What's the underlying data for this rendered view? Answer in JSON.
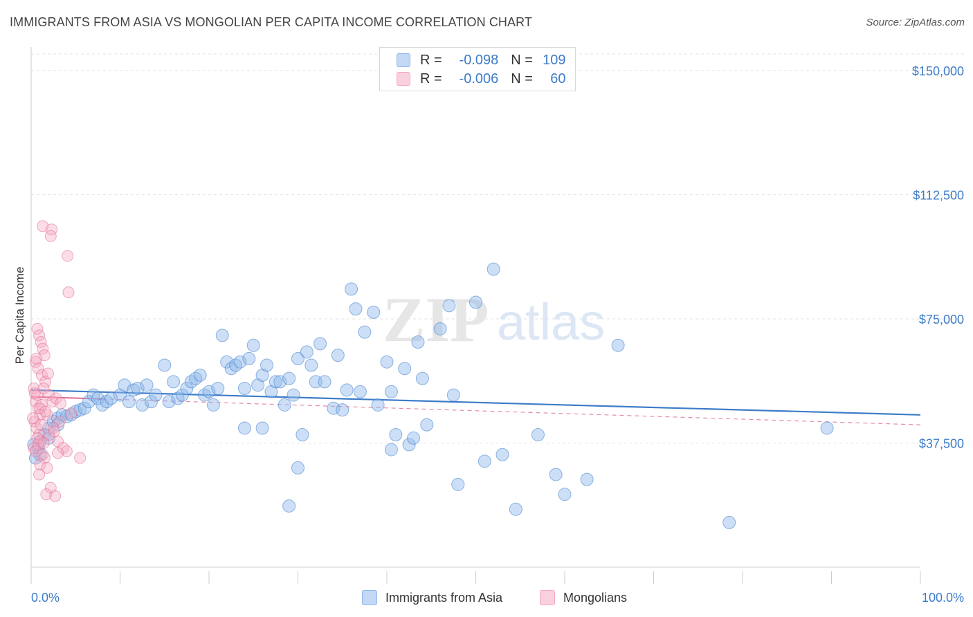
{
  "title": "IMMIGRANTS FROM ASIA VS MONGOLIAN PER CAPITA INCOME CORRELATION CHART",
  "source": "Source: ZipAtlas.com",
  "watermark": {
    "zip": "ZIP",
    "atlas": "atlas"
  },
  "legend": {
    "rows": [
      {
        "r_label": "R =",
        "r_value": "-0.098",
        "n_label": "N =",
        "n_value": "109",
        "color": "#8fb8ec"
      },
      {
        "r_label": "R =",
        "r_value": "-0.006",
        "n_label": "N =",
        "n_value": "60",
        "color": "#f4a9c2"
      }
    ]
  },
  "bottom_legend": [
    {
      "label": "Immigrants from Asia",
      "color": "#8fb8ec"
    },
    {
      "label": "Mongolians",
      "color": "#f4a9c2"
    }
  ],
  "chart_data": {
    "type": "scatter",
    "title": "IMMIGRANTS FROM ASIA VS MONGOLIAN PER CAPITA INCOME CORRELATION CHART",
    "xlabel": "",
    "ylabel": "Per Capita Income",
    "xlim": [
      0,
      100
    ],
    "ylim": [
      0,
      155000
    ],
    "x_tick_labels": [
      "0.0%",
      "100.0%"
    ],
    "y_ticks": [
      37500,
      75000,
      112500,
      150000
    ],
    "y_tick_labels": [
      "$37,500",
      "$75,000",
      "$112,500",
      "$150,000"
    ],
    "series": [
      {
        "name": "Immigrants from Asia",
        "color": "#3d7cc9",
        "fill": "rgba(143,184,236,0.45)",
        "trend": {
          "x": [
            0,
            100
          ],
          "y": [
            53500,
            46000
          ]
        },
        "points": [
          [
            0.5,
            33000
          ],
          [
            0.8,
            36000
          ],
          [
            1.0,
            38000
          ],
          [
            1.5,
            40000
          ],
          [
            2.0,
            42000
          ],
          [
            2.5,
            44000
          ],
          [
            3.0,
            45000
          ],
          [
            3.5,
            46000
          ],
          [
            4.0,
            45500
          ],
          [
            4.5,
            46000
          ],
          [
            5.0,
            47000
          ],
          [
            5.5,
            47500
          ],
          [
            6.0,
            48000
          ],
          [
            6.5,
            50000
          ],
          [
            7.0,
            52000
          ],
          [
            7.5,
            51000
          ],
          [
            8.0,
            49000
          ],
          [
            8.5,
            50000
          ],
          [
            9.0,
            51000
          ],
          [
            10.0,
            52000
          ],
          [
            10.5,
            55000
          ],
          [
            11.0,
            50000
          ],
          [
            11.5,
            53500
          ],
          [
            12.0,
            54000
          ],
          [
            12.5,
            49000
          ],
          [
            13.0,
            55000
          ],
          [
            13.5,
            50000
          ],
          [
            14.0,
            52000
          ],
          [
            15.0,
            61000
          ],
          [
            15.5,
            50000
          ],
          [
            16.0,
            56000
          ],
          [
            16.5,
            51000
          ],
          [
            17.0,
            52000
          ],
          [
            17.5,
            54000
          ],
          [
            18.0,
            56000
          ],
          [
            18.5,
            57000
          ],
          [
            19.0,
            58000
          ],
          [
            19.5,
            52000
          ],
          [
            20.0,
            53000
          ],
          [
            20.5,
            49000
          ],
          [
            21.0,
            54000
          ],
          [
            21.5,
            70000
          ],
          [
            22.0,
            62000
          ],
          [
            22.5,
            60000
          ],
          [
            23.0,
            61000
          ],
          [
            23.5,
            62000
          ],
          [
            24.0,
            54000
          ],
          [
            24.5,
            63000
          ],
          [
            25.0,
            67000
          ],
          [
            25.5,
            55000
          ],
          [
            26.0,
            58000
          ],
          [
            26.5,
            61000
          ],
          [
            27.0,
            53000
          ],
          [
            27.5,
            56000
          ],
          [
            28.0,
            56000
          ],
          [
            28.5,
            49000
          ],
          [
            29.0,
            57000
          ],
          [
            29.5,
            52000
          ],
          [
            30.0,
            63000
          ],
          [
            31.0,
            65000
          ],
          [
            31.5,
            61000
          ],
          [
            32.0,
            56000
          ],
          [
            32.5,
            67500
          ],
          [
            33.0,
            56000
          ],
          [
            34.0,
            48000
          ],
          [
            34.5,
            64000
          ],
          [
            35.0,
            47500
          ],
          [
            35.5,
            53500
          ],
          [
            36.0,
            84000
          ],
          [
            36.5,
            78000
          ],
          [
            37.0,
            53000
          ],
          [
            37.5,
            71000
          ],
          [
            38.5,
            77000
          ],
          [
            39.0,
            49000
          ],
          [
            40.0,
            62000
          ],
          [
            40.5,
            53000
          ],
          [
            41.0,
            40000
          ],
          [
            42.0,
            60000
          ],
          [
            42.5,
            37000
          ],
          [
            43.0,
            39000
          ],
          [
            43.5,
            68000
          ],
          [
            44.0,
            57000
          ],
          [
            44.5,
            43000
          ],
          [
            46.0,
            72000
          ],
          [
            47.0,
            79000
          ],
          [
            47.5,
            52000
          ],
          [
            48.0,
            25000
          ],
          [
            50.0,
            80000
          ],
          [
            51.0,
            32000
          ],
          [
            52.0,
            90000
          ],
          [
            53.0,
            34000
          ],
          [
            57.0,
            40000
          ],
          [
            59.0,
            28000
          ],
          [
            60.0,
            22000
          ],
          [
            62.5,
            26500
          ],
          [
            66.0,
            67000
          ],
          [
            78.5,
            13500
          ],
          [
            89.5,
            42000
          ],
          [
            30.0,
            30000
          ],
          [
            29.0,
            18500
          ],
          [
            30.5,
            40000
          ],
          [
            26.0,
            42000
          ],
          [
            24.0,
            42000
          ],
          [
            40.5,
            35500
          ],
          [
            54.5,
            17500
          ],
          [
            1.0,
            34000
          ],
          [
            3.0,
            43000
          ],
          [
            2.0,
            39000
          ],
          [
            0.3,
            37000
          ]
        ]
      },
      {
        "name": "Mongolians",
        "color": "#e06c92",
        "fill": "rgba(244,169,194,0.40)",
        "trend": {
          "x": [
            0,
            100
          ],
          "y": [
            51500,
            43000
          ]
        },
        "points": [
          [
            0.3,
            54000
          ],
          [
            0.5,
            50000
          ],
          [
            0.7,
            52000
          ],
          [
            0.8,
            48000
          ],
          [
            1.0,
            46000
          ],
          [
            1.2,
            49000
          ],
          [
            0.4,
            44000
          ],
          [
            0.6,
            42000
          ],
          [
            0.9,
            40000
          ],
          [
            1.1,
            38000
          ],
          [
            0.3,
            36000
          ],
          [
            0.5,
            35000
          ],
          [
            0.8,
            37000
          ],
          [
            1.3,
            34000
          ],
          [
            1.5,
            33000
          ],
          [
            1.0,
            31000
          ],
          [
            1.8,
            30000
          ],
          [
            0.9,
            28000
          ],
          [
            2.2,
            24000
          ],
          [
            1.7,
            22000
          ],
          [
            2.7,
            21500
          ],
          [
            0.7,
            72000
          ],
          [
            0.9,
            70000
          ],
          [
            1.1,
            68000
          ],
          [
            1.3,
            66000
          ],
          [
            1.5,
            64000
          ],
          [
            0.5,
            62000
          ],
          [
            0.8,
            60000
          ],
          [
            1.2,
            58000
          ],
          [
            1.6,
            56000
          ],
          [
            1.4,
            54000
          ],
          [
            2.0,
            52000
          ],
          [
            2.4,
            50000
          ],
          [
            1.0,
            48000
          ],
          [
            1.8,
            46000
          ],
          [
            3.2,
            44000
          ],
          [
            2.5,
            42000
          ],
          [
            2.0,
            40000
          ],
          [
            3.0,
            38000
          ],
          [
            3.6,
            36000
          ],
          [
            4.0,
            35000
          ],
          [
            3.0,
            34500
          ],
          [
            5.5,
            33000
          ],
          [
            1.3,
            103000
          ],
          [
            2.3,
            102000
          ],
          [
            2.2,
            100000
          ],
          [
            4.1,
            94000
          ],
          [
            4.2,
            83000
          ],
          [
            0.6,
            63000
          ],
          [
            1.9,
            58500
          ],
          [
            0.4,
            52500
          ],
          [
            2.8,
            51000
          ],
          [
            3.3,
            49500
          ],
          [
            1.6,
            47000
          ],
          [
            0.2,
            45000
          ],
          [
            4.5,
            46500
          ],
          [
            1.1,
            43000
          ],
          [
            2.6,
            41000
          ],
          [
            0.7,
            39000
          ],
          [
            1.4,
            37500
          ]
        ]
      }
    ]
  }
}
